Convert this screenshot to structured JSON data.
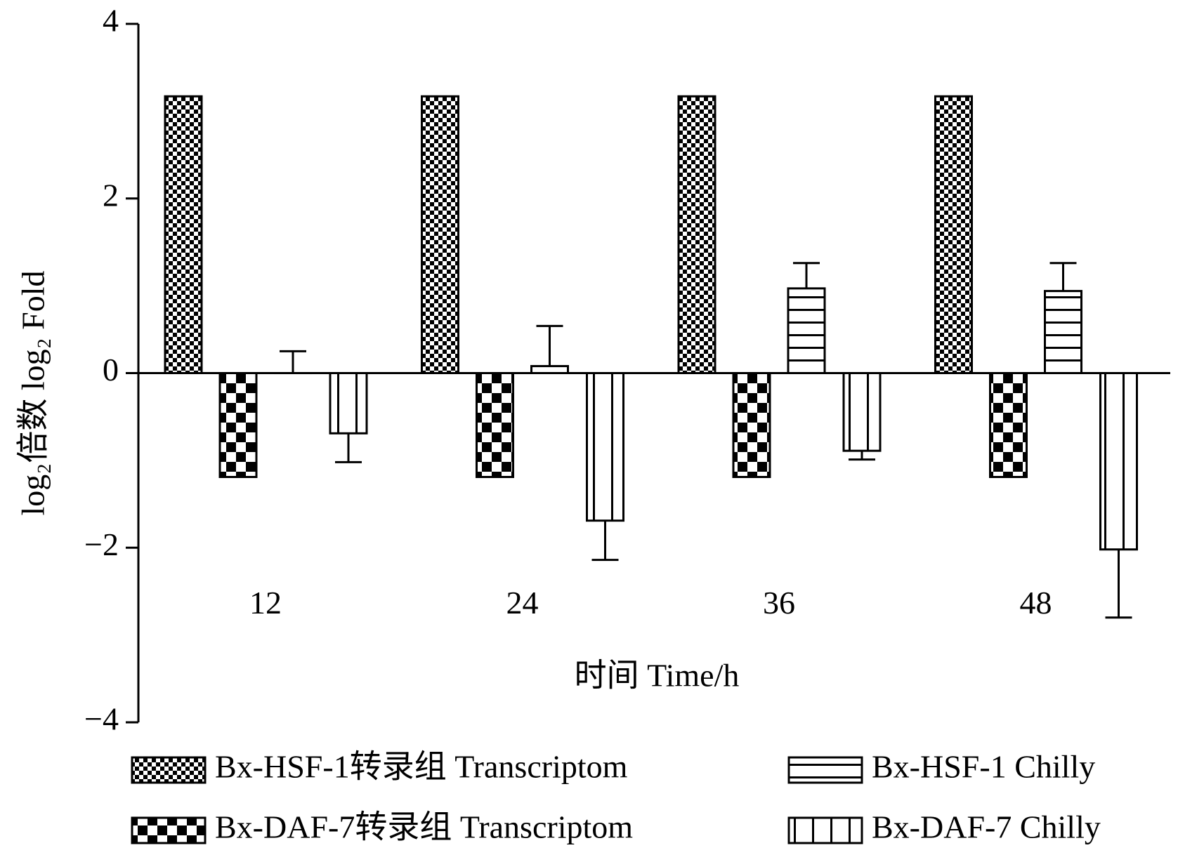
{
  "chart_data": {
    "type": "bar",
    "x_label": "时间 Time/h",
    "y_label": "log₂倍数 log₂ Fold",
    "categories": [
      "12",
      "24",
      "36",
      "48"
    ],
    "ylim": [
      -4,
      4
    ],
    "yticks": [
      {
        "value": -4,
        "label": "−4"
      },
      {
        "value": -2,
        "label": "−2"
      },
      0,
      2,
      4
    ],
    "series": [
      {
        "name": "Bx-HSF-1转录组 Transcriptom",
        "color": "#000000",
        "pattern": "fine-checker",
        "values": [
          3.17,
          3.17,
          3.17,
          3.17
        ]
      },
      {
        "name": "Bx-DAF-7转录组 Transcriptom",
        "color": "#000000",
        "pattern": "coarse-checker",
        "values": [
          -1.19,
          -1.19,
          -1.19,
          -1.19
        ]
      },
      {
        "name": "Bx-HSF-1 Chilly",
        "color": "#000000",
        "pattern": "horizontal-stripes",
        "values": [
          0,
          0.08,
          0.97,
          0.94
        ],
        "errors": [
          0.25,
          0.46,
          0.29,
          0.32
        ]
      },
      {
        "name": "Bx-DAF-7 Chilly",
        "color": "#000000",
        "pattern": "vertical-stripes",
        "values": [
          -0.69,
          -1.69,
          -0.89,
          -2.02
        ],
        "errors": [
          0.33,
          0.45,
          0.1,
          0.78
        ]
      }
    ]
  }
}
